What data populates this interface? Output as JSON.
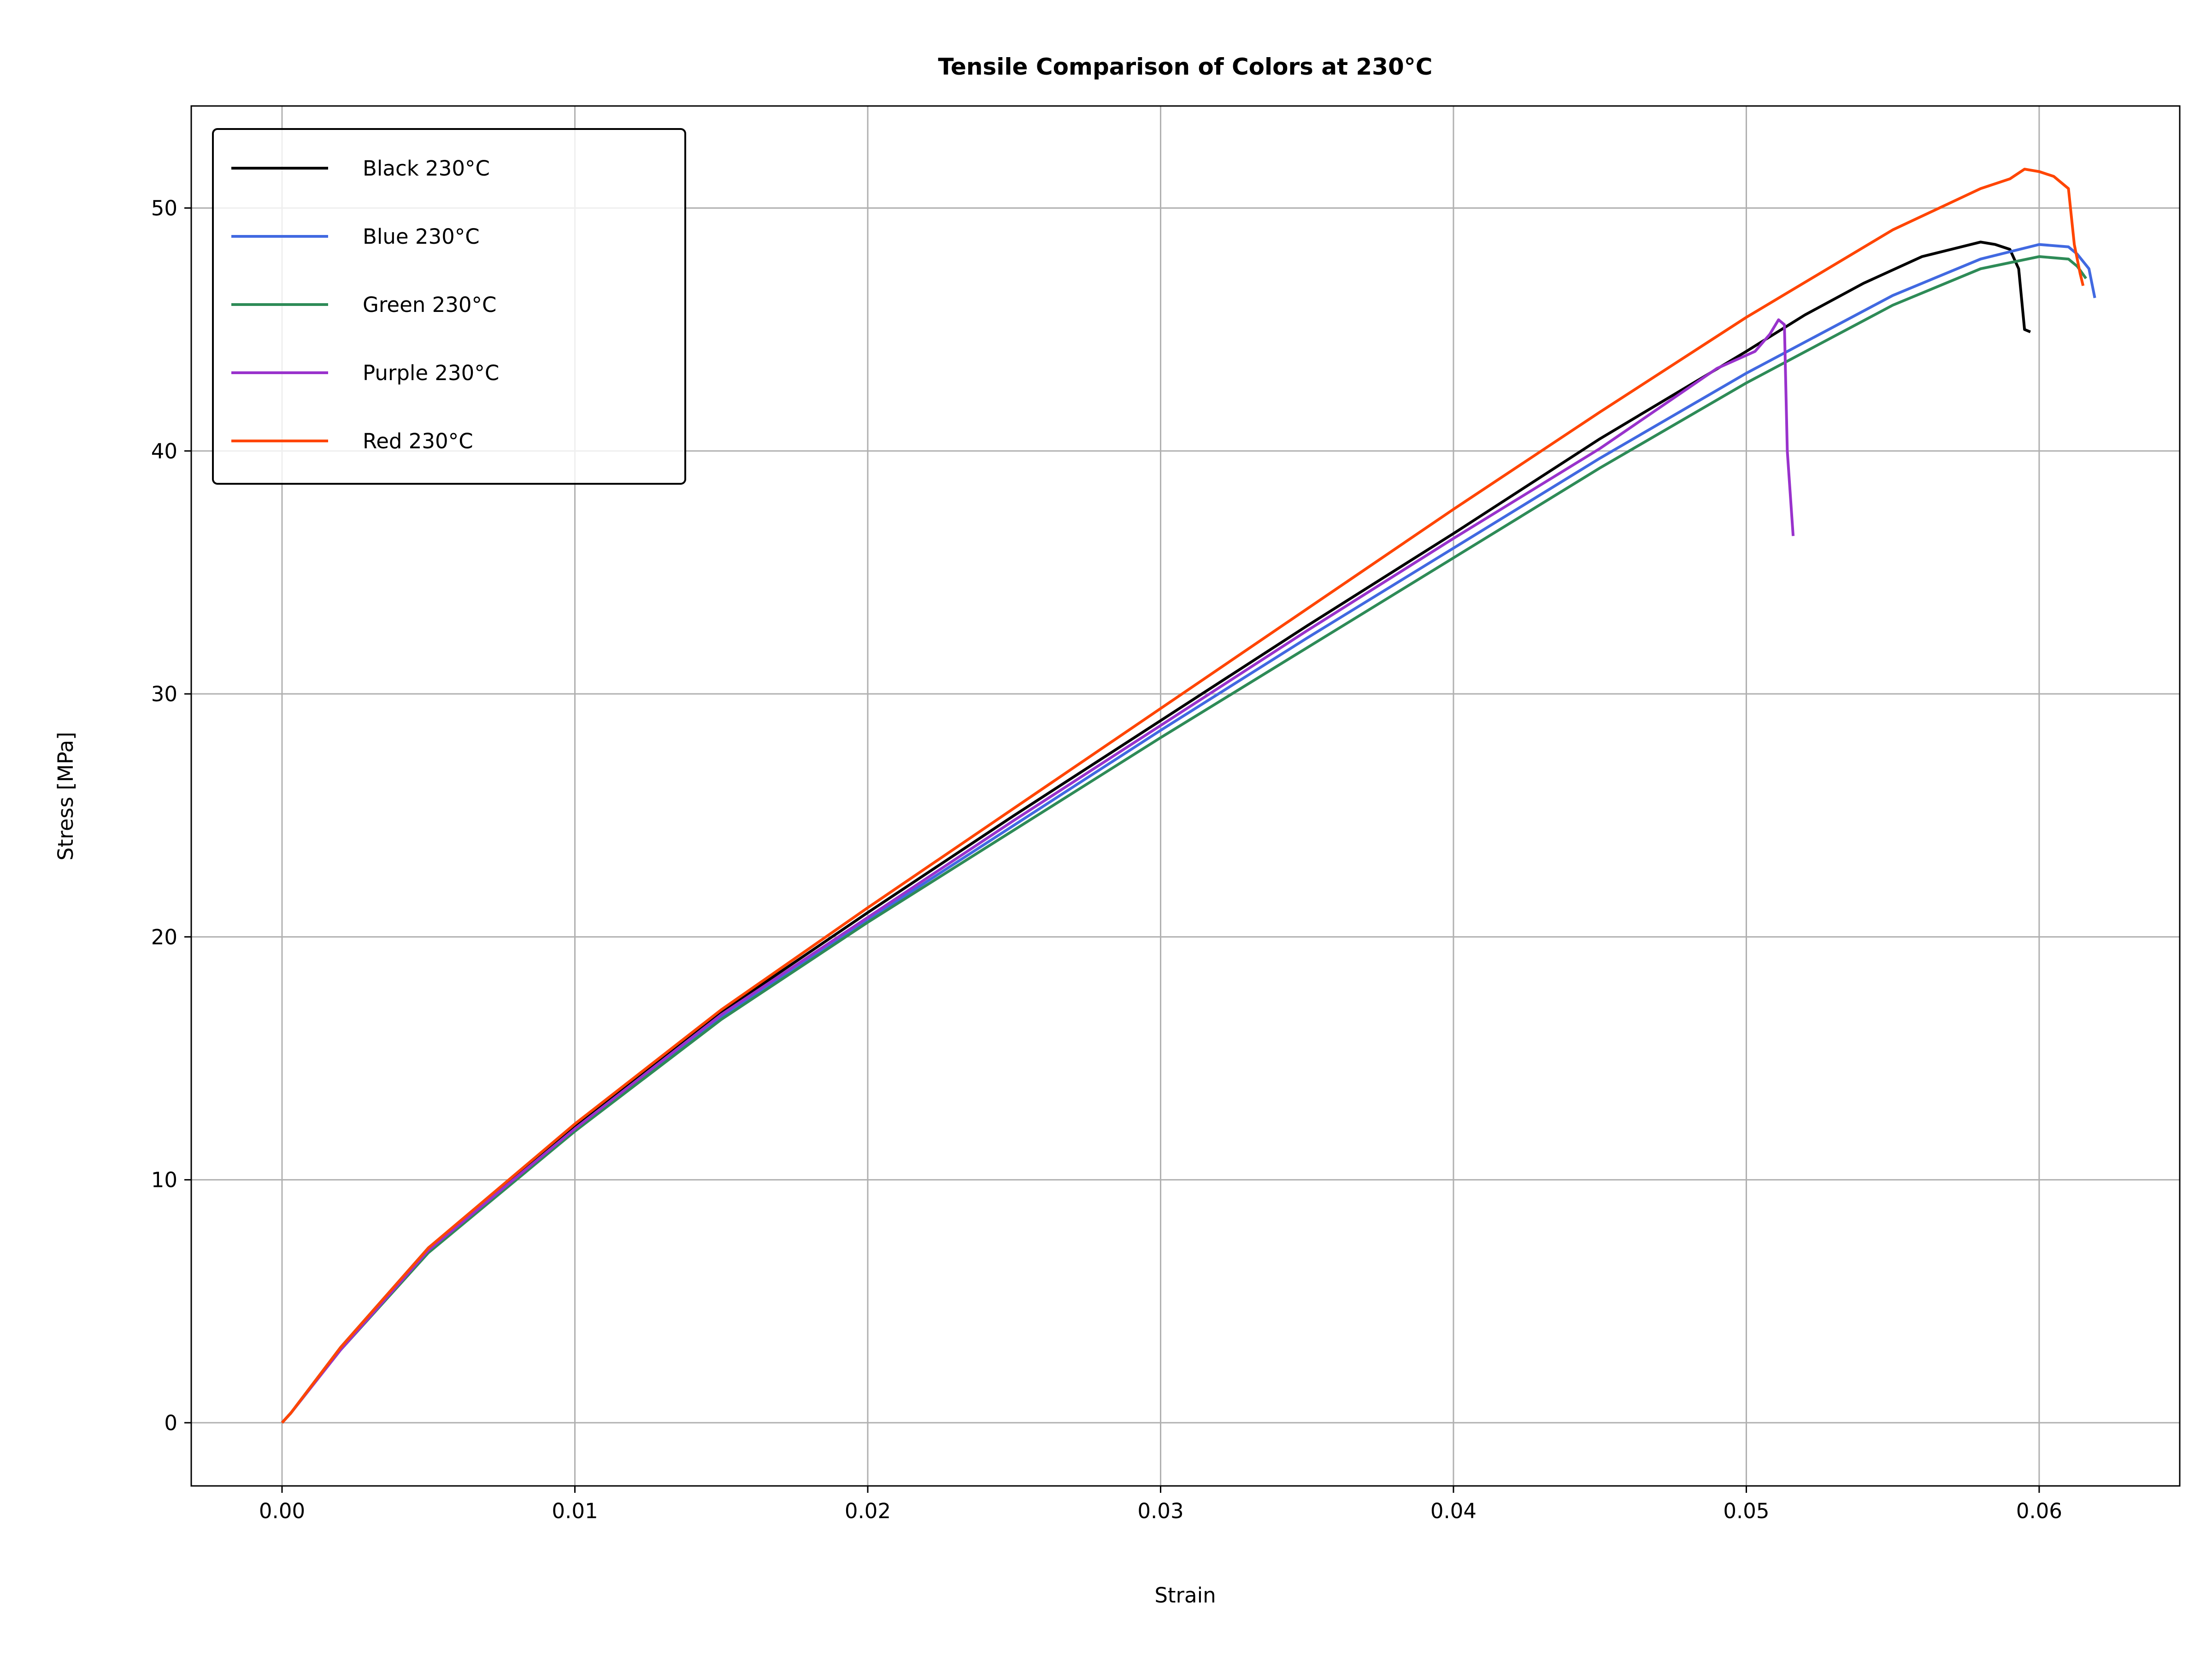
{
  "chart_data": {
    "type": "line",
    "title": "Tensile Comparison of Colors at 230°C",
    "xlabel": "Strain",
    "ylabel": "Stress [MPa]",
    "xlim": [
      -0.0031,
      0.0648
    ],
    "ylim": [
      -2.6,
      54.2
    ],
    "xticks": [
      0.0,
      0.01,
      0.02,
      0.03,
      0.04,
      0.05,
      0.06
    ],
    "xtick_labels": [
      "0.00",
      "0.01",
      "0.02",
      "0.03",
      "0.04",
      "0.05",
      "0.06"
    ],
    "yticks": [
      0,
      10,
      20,
      30,
      40,
      50
    ],
    "ytick_labels": [
      "0",
      "10",
      "20",
      "30",
      "40",
      "50"
    ],
    "grid": true,
    "legend_position": "top-left",
    "series": [
      {
        "name": "Black 230°C",
        "color": "#000000",
        "x": [
          0,
          0.0003,
          0.002,
          0.005,
          0.01,
          0.015,
          0.02,
          0.025,
          0.03,
          0.035,
          0.04,
          0.045,
          0.05,
          0.052,
          0.054,
          0.056,
          0.057,
          0.058,
          0.0585,
          0.059,
          0.0593,
          0.0595,
          0.0597
        ],
        "y": [
          0,
          0.4,
          3.1,
          7.2,
          12.2,
          16.9,
          21.0,
          25.0,
          28.9,
          32.8,
          36.6,
          40.5,
          44.1,
          45.6,
          46.9,
          48.0,
          48.3,
          48.6,
          48.5,
          48.3,
          47.5,
          45.0,
          44.9
        ]
      },
      {
        "name": "Blue 230°C",
        "color": "#4169e1",
        "x": [
          0,
          0.0003,
          0.002,
          0.005,
          0.01,
          0.015,
          0.02,
          0.025,
          0.03,
          0.035,
          0.04,
          0.045,
          0.05,
          0.055,
          0.058,
          0.06,
          0.061,
          0.0613,
          0.0617,
          0.0619
        ],
        "y": [
          0,
          0.4,
          3.0,
          7.1,
          12.0,
          16.7,
          20.7,
          24.6,
          28.5,
          32.3,
          36.0,
          39.7,
          43.2,
          46.4,
          47.9,
          48.5,
          48.4,
          48.1,
          47.5,
          46.3
        ]
      },
      {
        "name": "Green 230°C",
        "color": "#2e8b57",
        "x": [
          0,
          0.0003,
          0.002,
          0.005,
          0.01,
          0.015,
          0.02,
          0.025,
          0.03,
          0.035,
          0.04,
          0.045,
          0.05,
          0.055,
          0.058,
          0.06,
          0.061,
          0.0613,
          0.0616
        ],
        "y": [
          0,
          0.4,
          3.0,
          7.0,
          12.0,
          16.6,
          20.6,
          24.4,
          28.2,
          31.9,
          35.6,
          39.3,
          42.8,
          46.0,
          47.5,
          48.0,
          47.9,
          47.6,
          47.1
        ]
      },
      {
        "name": "Purple 230°C",
        "color": "#9932cc",
        "x": [
          0,
          0.0003,
          0.002,
          0.005,
          0.01,
          0.015,
          0.02,
          0.025,
          0.03,
          0.035,
          0.04,
          0.045,
          0.049,
          0.0503,
          0.0508,
          0.0511,
          0.0513,
          0.0514,
          0.0516
        ],
        "y": [
          0,
          0.4,
          3.0,
          7.1,
          12.1,
          16.8,
          20.8,
          24.8,
          28.7,
          32.6,
          36.4,
          40.1,
          43.4,
          44.1,
          44.8,
          45.4,
          45.2,
          40.0,
          36.5
        ]
      },
      {
        "name": "Red 230°C",
        "color": "#ff4500",
        "x": [
          0,
          0.0003,
          0.002,
          0.005,
          0.01,
          0.015,
          0.02,
          0.025,
          0.03,
          0.035,
          0.04,
          0.045,
          0.05,
          0.055,
          0.058,
          0.059,
          0.0595,
          0.06,
          0.0605,
          0.061,
          0.0612,
          0.0614,
          0.0615
        ],
        "y": [
          0,
          0.4,
          3.1,
          7.2,
          12.3,
          17.0,
          21.2,
          25.3,
          29.4,
          33.5,
          37.6,
          41.6,
          45.5,
          49.1,
          50.8,
          51.2,
          51.6,
          51.5,
          51.3,
          50.8,
          48.5,
          47.3,
          46.8
        ]
      }
    ]
  }
}
